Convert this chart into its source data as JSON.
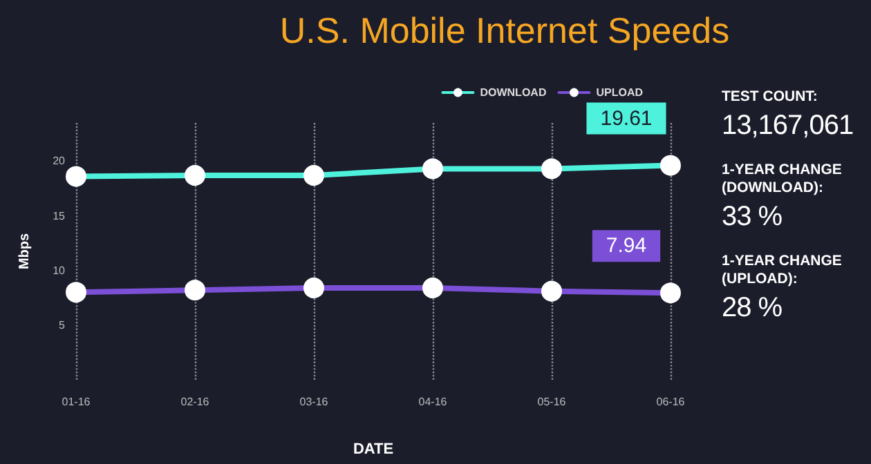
{
  "chart_data": [
    {
      "type": "line",
      "title": "U.S. Mobile Internet Speeds",
      "xlabel": "DATE",
      "ylabel": "Mbps",
      "categories": [
        "01-16",
        "02-16",
        "03-16",
        "04-16",
        "05-16",
        "06-16"
      ],
      "series": [
        {
          "name": "DOWNLOAD",
          "color": "#4ef2dc",
          "values": [
            18.6,
            18.7,
            18.7,
            19.3,
            19.3,
            19.61
          ],
          "value_labels": [
            null,
            null,
            null,
            null,
            null,
            "19.61"
          ]
        },
        {
          "name": "UPLOAD",
          "color": "#7b4fd6",
          "values": [
            8.0,
            8.2,
            8.4,
            8.4,
            8.1,
            7.94
          ],
          "value_labels": [
            null,
            null,
            null,
            null,
            null,
            "7.94"
          ]
        }
      ],
      "ylim": [
        0,
        23.5
      ],
      "yticks": [
        5,
        10,
        15,
        20
      ],
      "grid": "x",
      "legend": "top right",
      "marker": "circle",
      "line_style": "solid"
    },
    {
      "type": "other",
      "annotations": [
        "TEST COUNT:",
        "13,167,061",
        "1-YEAR CHANGE (DOWNLOAD):",
        "33 %",
        "1-YEAR CHANGE (UPLOAD):",
        "28 %"
      ]
    }
  ]
}
